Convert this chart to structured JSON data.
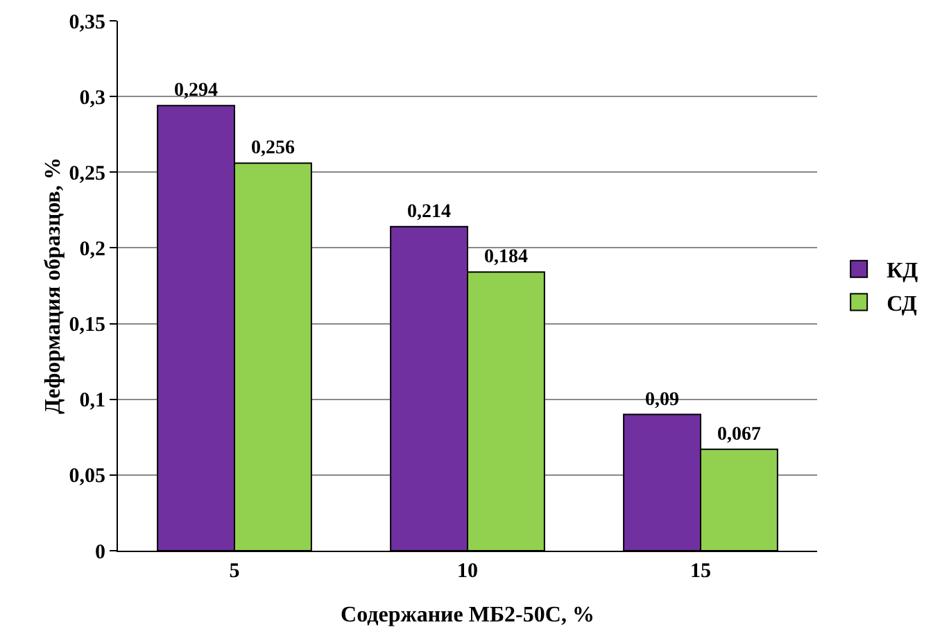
{
  "chart_data": {
    "type": "bar",
    "xlabel": "Содержание МБ2-50С, %",
    "ylabel": "Деформация образцов, %",
    "categories": [
      "5",
      "10",
      "15"
    ],
    "series": [
      {
        "name": "КД",
        "color": "#7030a0",
        "values": [
          0.294,
          0.214,
          0.09
        ],
        "value_labels": [
          "0,294",
          "0,214",
          "0,09"
        ]
      },
      {
        "name": "СД",
        "color": "#92d050",
        "values": [
          0.256,
          0.184,
          0.067
        ],
        "value_labels": [
          "0,256",
          "0,184",
          "0,067"
        ]
      }
    ],
    "ylim": [
      0,
      0.35
    ],
    "yticks": [
      {
        "value": 0,
        "label": "0"
      },
      {
        "value": 0.05,
        "label": "0,05"
      },
      {
        "value": 0.1,
        "label": "0,1"
      },
      {
        "value": 0.15,
        "label": "0,15"
      },
      {
        "value": 0.2,
        "label": "0,2"
      },
      {
        "value": 0.25,
        "label": "0,25"
      },
      {
        "value": 0.3,
        "label": "0,3"
      },
      {
        "value": 0.35,
        "label": "0,35"
      }
    ],
    "grid": "y",
    "legend": "right"
  }
}
